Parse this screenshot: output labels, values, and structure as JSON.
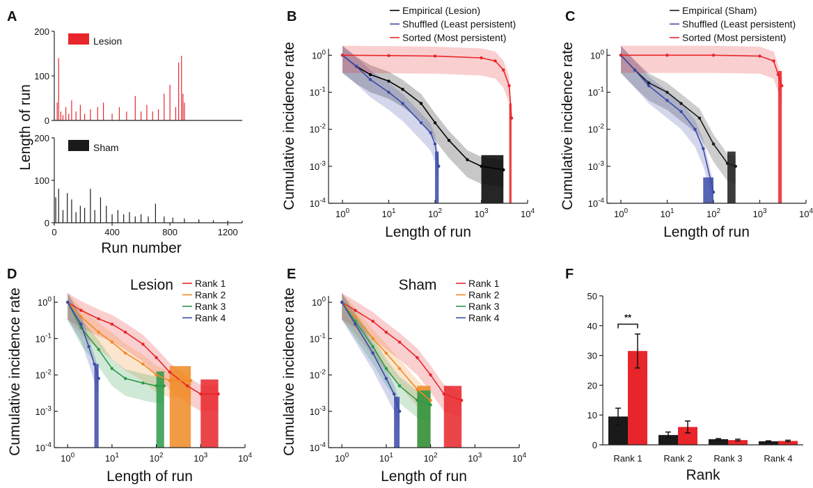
{
  "chart_data": [
    {
      "panel": "A",
      "type": "bar",
      "subplots": [
        {
          "legend": "Lesion",
          "color": "#e8252a",
          "ylim": [
            0,
            200
          ],
          "yticks": [
            "0",
            "100",
            "200"
          ],
          "xticks": [],
          "spikes": [
            [
              20,
              40
            ],
            [
              30,
              140
            ],
            [
              45,
              20
            ],
            [
              60,
              12
            ],
            [
              80,
              30
            ],
            [
              100,
              15
            ],
            [
              120,
              45
            ],
            [
              150,
              20
            ],
            [
              180,
              35
            ],
            [
              210,
              15
            ],
            [
              250,
              25
            ],
            [
              300,
              30
            ],
            [
              340,
              40
            ],
            [
              400,
              15
            ],
            [
              450,
              30
            ],
            [
              500,
              20
            ],
            [
              560,
              55
            ],
            [
              600,
              20
            ],
            [
              640,
              35
            ],
            [
              680,
              20
            ],
            [
              720,
              25
            ],
            [
              760,
              60
            ],
            [
              800,
              80
            ],
            [
              840,
              30
            ],
            [
              860,
              130
            ],
            [
              880,
              145
            ],
            [
              890,
              60
            ],
            [
              900,
              40
            ]
          ]
        },
        {
          "legend": "Sham",
          "color": "#1a1a1a",
          "ylim": [
            0,
            200
          ],
          "yticks": [
            "0",
            "100",
            "200"
          ],
          "xticks": [
            "0",
            "400",
            "800",
            "1200"
          ],
          "xlim": [
            0,
            1300
          ],
          "spikes": [
            [
              10,
              60
            ],
            [
              30,
              80
            ],
            [
              60,
              30
            ],
            [
              90,
              70
            ],
            [
              120,
              55
            ],
            [
              150,
              25
            ],
            [
              180,
              40
            ],
            [
              210,
              35
            ],
            [
              250,
              80
            ],
            [
              280,
              30
            ],
            [
              320,
              60
            ],
            [
              360,
              40
            ],
            [
              400,
              20
            ],
            [
              440,
              30
            ],
            [
              480,
              20
            ],
            [
              520,
              25
            ],
            [
              560,
              15
            ],
            [
              600,
              20
            ],
            [
              650,
              15
            ],
            [
              700,
              45
            ],
            [
              760,
              15
            ],
            [
              820,
              12
            ],
            [
              900,
              10
            ],
            [
              1000,
              8
            ],
            [
              1100,
              6
            ],
            [
              1200,
              5
            ],
            [
              1300,
              5
            ]
          ]
        }
      ],
      "xlabel": "Run number",
      "ylabel": "Length of run"
    },
    {
      "panel": "B",
      "type": "line",
      "xscale": "log",
      "yscale": "log",
      "xlim": [
        0.5,
        10000
      ],
      "ylim": [
        0.0001,
        1.5
      ],
      "xticks": [
        "10^0",
        "10^1",
        "10^2",
        "10^3",
        "10^4"
      ],
      "yticks": [
        "10^0",
        "10^-1",
        "10^-2",
        "10^-3",
        "10^-4"
      ],
      "xlabel": "Length of run",
      "ylabel": "Cumulative incidence rate",
      "legend": [
        "Empirical (Lesion)",
        "Shuffled (Least persistent)",
        "Sorted (Most persistent)"
      ],
      "series": [
        {
          "name": "Empirical (Lesion)",
          "color": "#000000",
          "x": [
            1,
            2,
            4,
            10,
            20,
            50,
            100,
            200,
            500,
            1000,
            3000
          ],
          "y": [
            1,
            0.5,
            0.3,
            0.2,
            0.12,
            0.05,
            0.015,
            0.005,
            0.0015,
            0.001,
            0.0008
          ]
        },
        {
          "name": "Shuffled (Least persistent)",
          "color": "#3a4aa8",
          "x": [
            1,
            2,
            4,
            10,
            20,
            50,
            80,
            100,
            120
          ],
          "y": [
            1,
            0.5,
            0.22,
            0.1,
            0.05,
            0.015,
            0.008,
            0.004,
            0.001
          ]
        },
        {
          "name": "Sorted (Most persistent)",
          "color": "#e8252a",
          "x": [
            1,
            10,
            100,
            1000,
            2000,
            3000,
            4000,
            4500
          ],
          "y": [
            1,
            0.98,
            0.95,
            0.85,
            0.7,
            0.4,
            0.15,
            0.02
          ]
        }
      ]
    },
    {
      "panel": "C",
      "type": "line",
      "xscale": "log",
      "yscale": "log",
      "xlim": [
        0.5,
        10000
      ],
      "ylim": [
        0.0001,
        1.5
      ],
      "xticks": [
        "10^0",
        "10^1",
        "10^2",
        "10^3",
        "10^4"
      ],
      "yticks": [
        "10^0",
        "10^-1",
        "10^-2",
        "10^-3",
        "10^-4"
      ],
      "xlabel": "Length of run",
      "ylabel": "Cumulative incidence rate",
      "legend": [
        "Empirical (Sham)",
        "Shuffled (Least persistent)",
        "Sorted (Most persistent)"
      ],
      "series": [
        {
          "name": "Empirical (Sham)",
          "color": "#1a1a1a",
          "x": [
            1,
            2,
            4,
            10,
            20,
            50,
            100,
            200,
            300
          ],
          "y": [
            1,
            0.4,
            0.18,
            0.1,
            0.05,
            0.02,
            0.004,
            0.0012,
            0.001
          ]
        },
        {
          "name": "Shuffled (Least persistent)",
          "color": "#3a4aa8",
          "x": [
            1,
            2,
            4,
            10,
            20,
            40,
            60,
            100
          ],
          "y": [
            1,
            0.4,
            0.15,
            0.06,
            0.03,
            0.01,
            0.003,
            0.0002
          ]
        },
        {
          "name": "Sorted (Most persistent)",
          "color": "#e8252a",
          "x": [
            1,
            10,
            100,
            1000,
            2000,
            2500,
            3000
          ],
          "y": [
            1,
            1,
            1,
            0.95,
            0.7,
            0.3,
            0.15
          ]
        }
      ]
    },
    {
      "panel": "D",
      "type": "line",
      "title": "Lesion",
      "xscale": "log",
      "yscale": "log",
      "xlim": [
        0.5,
        10000
      ],
      "ylim": [
        0.0001,
        1.5
      ],
      "xticks": [
        "10^0",
        "10^1",
        "10^2",
        "10^3",
        "10^4"
      ],
      "yticks": [
        "10^0",
        "10^-1",
        "10^-2",
        "10^-3",
        "10^-4"
      ],
      "xlabel": "Length of run",
      "ylabel": "Cumulative incidence rate",
      "legend": [
        "Rank 1",
        "Rank 2",
        "Rank 3",
        "Rank 4"
      ],
      "series": [
        {
          "name": "Rank 1",
          "color": "#e8252a",
          "x": [
            1,
            2,
            5,
            10,
            20,
            50,
            100,
            200,
            500,
            1000,
            2500
          ],
          "y": [
            1,
            0.6,
            0.35,
            0.25,
            0.15,
            0.07,
            0.03,
            0.012,
            0.005,
            0.003,
            0.003
          ]
        },
        {
          "name": "Rank 2",
          "color": "#f08a24",
          "x": [
            1,
            2,
            5,
            10,
            20,
            50,
            100,
            200,
            600
          ],
          "y": [
            1,
            0.4,
            0.15,
            0.08,
            0.04,
            0.02,
            0.01,
            0.007,
            0.007
          ]
        },
        {
          "name": "Rank 3",
          "color": "#2a9a4a",
          "x": [
            1,
            2,
            5,
            10,
            20,
            50,
            100,
            150
          ],
          "y": [
            1,
            0.2,
            0.05,
            0.015,
            0.008,
            0.006,
            0.005,
            0.005
          ]
        },
        {
          "name": "Rank 4",
          "color": "#3a4aa8",
          "x": [
            1,
            2,
            3,
            4,
            5
          ],
          "y": [
            1,
            0.25,
            0.06,
            0.02,
            0.008
          ]
        }
      ]
    },
    {
      "panel": "E",
      "type": "line",
      "title": "Sham",
      "xscale": "log",
      "yscale": "log",
      "xlim": [
        0.5,
        10000
      ],
      "ylim": [
        0.0001,
        1.5
      ],
      "xticks": [
        "10^0",
        "10^1",
        "10^2",
        "10^3",
        "10^4"
      ],
      "yticks": [
        "10^0",
        "10^-1",
        "10^-2",
        "10^-3",
        "10^-4"
      ],
      "xlabel": "Length of run",
      "ylabel": "Cumulative incidence rate",
      "legend": [
        "Rank 1",
        "Rank 2",
        "Rank 3",
        "Rank 4"
      ],
      "series": [
        {
          "name": "Rank 1",
          "color": "#e8252a",
          "x": [
            1,
            2,
            5,
            10,
            20,
            50,
            100,
            200,
            500
          ],
          "y": [
            1,
            0.6,
            0.3,
            0.15,
            0.08,
            0.03,
            0.01,
            0.003,
            0.002
          ]
        },
        {
          "name": "Rank 2",
          "color": "#f08a24",
          "x": [
            1,
            2,
            5,
            10,
            20,
            50,
            100
          ],
          "y": [
            1,
            0.4,
            0.1,
            0.04,
            0.015,
            0.004,
            0.002
          ]
        },
        {
          "name": "Rank 3",
          "color": "#2a9a4a",
          "x": [
            1,
            2,
            5,
            10,
            20,
            50,
            100
          ],
          "y": [
            1,
            0.3,
            0.06,
            0.015,
            0.005,
            0.002,
            0.0015
          ]
        },
        {
          "name": "Rank 4",
          "color": "#3a4aa8",
          "x": [
            1,
            2,
            5,
            10,
            15,
            20
          ],
          "y": [
            1,
            0.25,
            0.04,
            0.008,
            0.003,
            0.001
          ]
        }
      ]
    },
    {
      "panel": "F",
      "type": "bar",
      "categories": [
        "Rank 1",
        "Rank 2",
        "Rank 3",
        "Rank 4"
      ],
      "series": [
        {
          "color": "#1a1a1a",
          "values": [
            9.5,
            3.3,
            1.9,
            1.2
          ],
          "errors": [
            2.8,
            1.0,
            0.2,
            0.15
          ]
        },
        {
          "color": "#e8252a",
          "values": [
            31.5,
            6.0,
            1.6,
            1.3
          ],
          "errors": [
            5.7,
            2.0,
            0.3,
            0.25
          ]
        }
      ],
      "ylim": [
        0,
        50
      ],
      "yticks": [
        "0",
        "10",
        "20",
        "30",
        "40",
        "50"
      ],
      "xlabel": "Rank",
      "ylabel": "",
      "annotation": "**"
    }
  ]
}
